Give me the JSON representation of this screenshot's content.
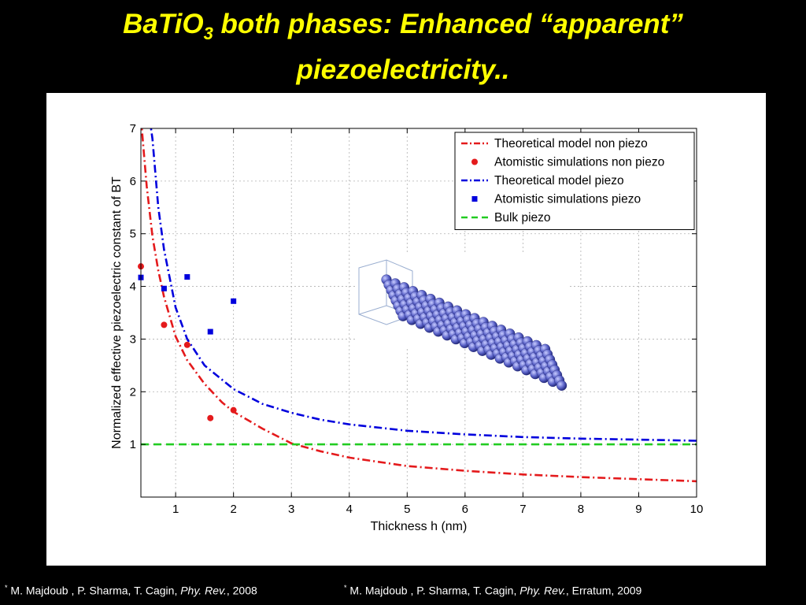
{
  "slide": {
    "title_prefix": "BaTiO",
    "title_subscript": "3",
    "title_line1_rest": " both phases: Enhanced “apparent”",
    "title_line2": "piezoelectricity.."
  },
  "colors": {
    "background": "#000000",
    "title": "#ffff00",
    "reference_text": "#ffffff",
    "non_piezo": "#e41a1c",
    "piezo": "#0000dd",
    "bulk": "#22cc22",
    "nanowire": "#5a62c8"
  },
  "references": [
    {
      "marker": "*",
      "authors": "M. Majdoub , P. Sharma, T. Cagin, ",
      "journal": "Phy. Rev.",
      "rest": ", 2008"
    },
    {
      "marker": "*",
      "authors": "M. Majdoub , P. Sharma, T. Cagin,  ",
      "journal": "Phy. Rev.",
      "rest": ", Erratum, 2009"
    }
  ],
  "chart_data": {
    "type": "line",
    "xlabel": "Thickness h (nm)",
    "ylabel": "Normalized effective piezoelectric constant of BT",
    "xlim": [
      0.4,
      10
    ],
    "ylim": [
      0,
      7
    ],
    "xticks": [
      "1",
      "2",
      "3",
      "4",
      "5",
      "6",
      "7",
      "8",
      "9",
      "10"
    ],
    "yticks": [
      "1",
      "2",
      "3",
      "4",
      "5",
      "6",
      "7"
    ],
    "grid": true,
    "legend_position": "top-right",
    "inset_image": "nanowire-atomistic-model",
    "series": [
      {
        "name": "Theoretical model non piezo",
        "style": "dash-dot-line",
        "color": "#e41a1c",
        "x": [
          0.4,
          0.5,
          0.6,
          0.7,
          0.8,
          1.0,
          1.2,
          1.5,
          1.8,
          2.0,
          2.5,
          3.0,
          3.5,
          4.0,
          5.0,
          6.0,
          7.0,
          8.0,
          9.0,
          10.0
        ],
        "y": [
          7.2,
          5.9,
          4.95,
          4.3,
          3.8,
          3.05,
          2.6,
          2.15,
          1.8,
          1.62,
          1.3,
          1.02,
          0.87,
          0.75,
          0.59,
          0.5,
          0.43,
          0.38,
          0.34,
          0.3
        ]
      },
      {
        "name": "Atomistic simulations non piezo",
        "style": "markers-circle",
        "color": "#e41a1c",
        "x": [
          0.4,
          0.8,
          1.2,
          1.6,
          2.0
        ],
        "y": [
          4.38,
          3.27,
          2.89,
          1.5,
          1.65
        ]
      },
      {
        "name": "Theoretical model piezo",
        "style": "dash-dot-line",
        "color": "#0000dd",
        "x": [
          0.55,
          0.6,
          0.7,
          0.8,
          1.0,
          1.2,
          1.5,
          2.0,
          2.5,
          3.0,
          3.5,
          4.0,
          5.0,
          6.0,
          7.0,
          8.0,
          9.0,
          10.0
        ],
        "y": [
          7.2,
          6.8,
          5.5,
          4.7,
          3.6,
          3.0,
          2.5,
          2.05,
          1.77,
          1.6,
          1.47,
          1.38,
          1.26,
          1.19,
          1.14,
          1.11,
          1.09,
          1.07
        ]
      },
      {
        "name": "Atomistic simulations piezo",
        "style": "markers-square",
        "color": "#0000dd",
        "x": [
          0.4,
          0.8,
          1.2,
          1.6,
          2.0
        ],
        "y": [
          4.17,
          3.96,
          4.18,
          3.14,
          3.72
        ]
      },
      {
        "name": "Bulk piezo",
        "style": "dashed-line",
        "color": "#22cc22",
        "x": [
          0.4,
          10.0
        ],
        "y": [
          1.0,
          1.0
        ]
      }
    ]
  }
}
